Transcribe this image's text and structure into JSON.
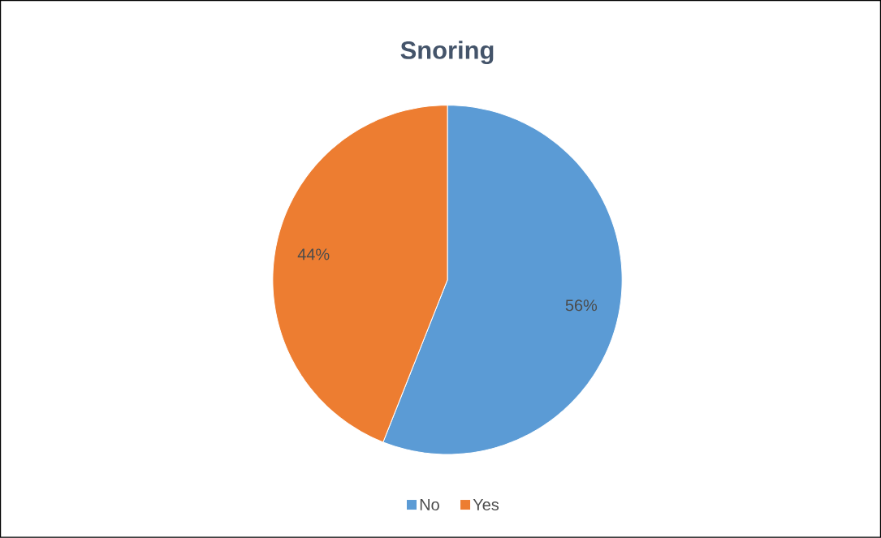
{
  "chart_data": {
    "type": "pie",
    "title": "Snoring",
    "categories": [
      "No",
      "Yes"
    ],
    "values": [
      56,
      44
    ],
    "colors": [
      "#5b9bd5",
      "#ed7d31"
    ],
    "value_labels": [
      "56%",
      "44%"
    ],
    "legend": "bottom"
  }
}
